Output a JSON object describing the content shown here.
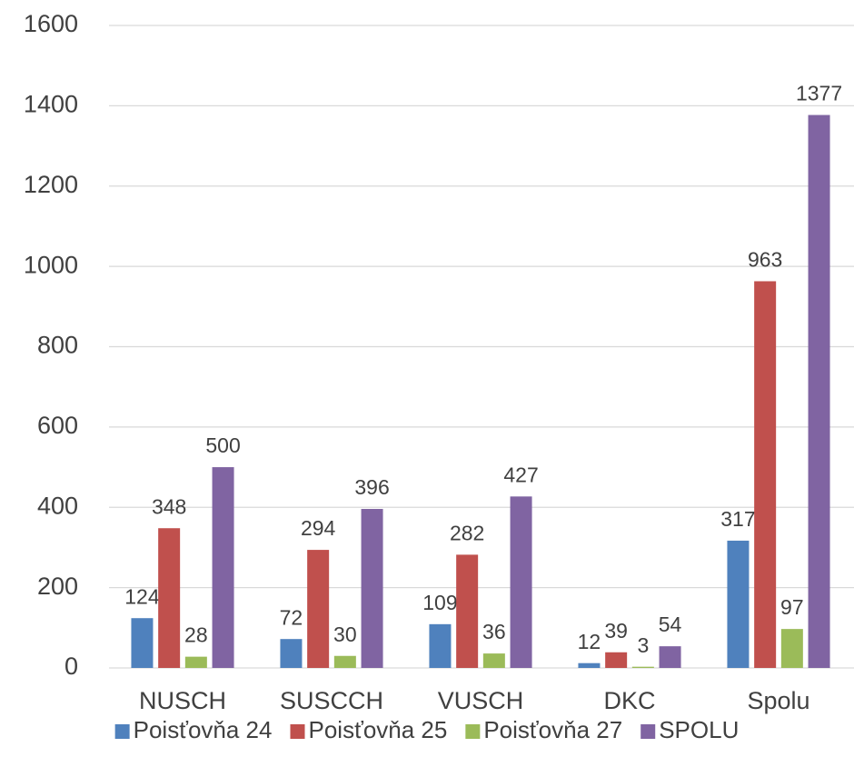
{
  "chart_data": {
    "type": "bar",
    "categories": [
      "NUSCH",
      "SUSCCH",
      "VUSCH",
      "DKC",
      "Spolu"
    ],
    "series": [
      {
        "name": "Poisťovňa 24",
        "color": "#4f81bd",
        "values": [
          124,
          72,
          109,
          12,
          317
        ]
      },
      {
        "name": "Poisťovňa 25",
        "color": "#c0504d",
        "values": [
          348,
          294,
          282,
          39,
          963
        ]
      },
      {
        "name": "Poisťovňa 27",
        "color": "#9bbb59",
        "values": [
          28,
          30,
          36,
          3,
          97
        ]
      },
      {
        "name": "SPOLU",
        "color": "#8064a2",
        "values": [
          500,
          396,
          427,
          54,
          1377
        ]
      }
    ],
    "ylim": [
      0,
      1600
    ],
    "yticks": [
      0,
      200,
      400,
      600,
      800,
      1000,
      1200,
      1400,
      1600
    ],
    "grid": true,
    "legend": "bottom"
  }
}
